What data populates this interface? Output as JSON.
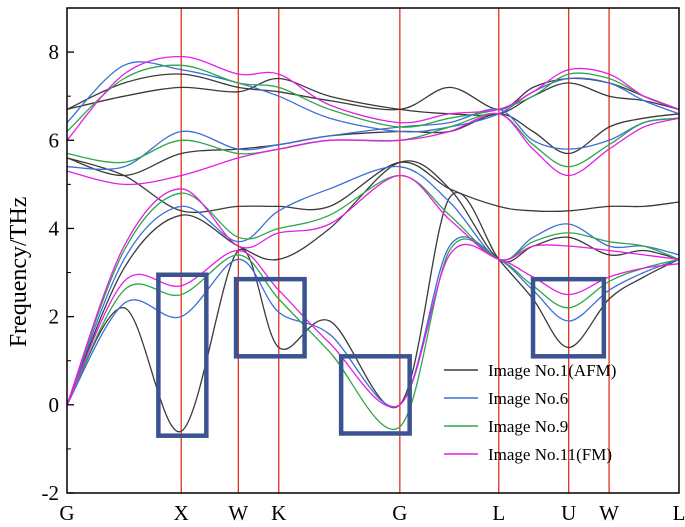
{
  "chart_data": {
    "type": "line",
    "title": "",
    "xlabel": "",
    "ylabel": "Frequency/THz",
    "ylim": [
      -2,
      9
    ],
    "yticks": [
      -2,
      0,
      2,
      4,
      6,
      8
    ],
    "grid": false,
    "legend_position": "bottom-right",
    "colors": {
      "afm": "#3a3a3a",
      "no6": "#3d6fd6",
      "no9": "#2ca84a",
      "fm": "#e61ee6",
      "high_symmetry_line": "#e0331e",
      "highlight_box": "#3b5391"
    },
    "path_axis": {
      "labels": [
        "G",
        "X",
        "W",
        "K",
        "G",
        "L",
        "U",
        "W",
        "L"
      ],
      "positions": [
        0,
        1,
        1.5,
        1.854,
        2.914,
        3.78,
        4.392,
        4.746,
        5.358
      ]
    },
    "series": [
      {
        "name": "Image No.1(AFM)",
        "color_key": "afm",
        "bands": [
          {
            "x": [
              0,
              0.5,
              1,
              1.5,
              1.854,
              2.3,
              2.914,
              3.35,
              3.78,
              4.08,
              4.392,
              4.746,
              5.05,
              5.358
            ],
            "y": [
              0,
              2.2,
              -0.6,
              3.5,
              1.3,
              1.9,
              0,
              4.7,
              3.3,
              2.4,
              1.3,
              2.4,
              2.9,
              3.3
            ]
          },
          {
            "x": [
              0,
              0.5,
              1,
              1.5,
              1.854,
              2.3,
              2.914,
              3.35,
              3.78,
              4.08,
              4.392,
              4.746,
              5.05,
              5.358
            ],
            "y": [
              0,
              3.1,
              4.3,
              3.6,
              3.3,
              4.0,
              5.5,
              4.9,
              3.3,
              3.6,
              3.8,
              3.4,
              3.5,
              3.3
            ]
          },
          {
            "x": [
              0,
              0.5,
              1,
              1.5,
              1.854,
              2.3,
              2.914,
              3.35,
              3.78,
              4.08,
              4.392,
              4.746,
              5.05,
              5.358
            ],
            "y": [
              5.6,
              5.2,
              4.4,
              4.5,
              4.5,
              4.5,
              5.5,
              4.9,
              4.5,
              4.4,
              4.4,
              4.5,
              4.5,
              4.6
            ]
          },
          {
            "x": [
              0,
              0.5,
              1,
              1.5,
              1.854,
              2.3,
              2.914,
              3.35,
              3.78,
              4.08,
              4.392,
              4.746,
              5.05,
              5.358
            ],
            "y": [
              5.6,
              5.2,
              5.7,
              5.8,
              5.9,
              6.1,
              6.2,
              6.2,
              6.6,
              6.2,
              5.7,
              6.3,
              6.5,
              6.6
            ]
          },
          {
            "x": [
              0,
              0.5,
              1,
              1.5,
              1.854,
              2.3,
              2.914,
              3.35,
              3.78,
              4.08,
              4.392,
              4.746,
              5.05,
              5.358
            ],
            "y": [
              6.7,
              7.0,
              7.2,
              7.1,
              7.4,
              7.0,
              6.7,
              6.6,
              6.6,
              7.0,
              7.3,
              7.0,
              6.9,
              6.7
            ]
          },
          {
            "x": [
              0,
              0.5,
              1,
              1.5,
              1.854,
              2.3,
              2.914,
              3.35,
              3.78,
              4.08,
              4.392,
              4.746,
              5.05,
              5.358
            ],
            "y": [
              6.7,
              7.3,
              7.5,
              7.2,
              7.1,
              6.9,
              6.7,
              7.2,
              6.7,
              7.2,
              7.4,
              7.3,
              7.0,
              6.7
            ]
          }
        ]
      },
      {
        "name": "Image No.6",
        "color_key": "no6",
        "bands": [
          {
            "x": [
              0,
              0.5,
              1,
              1.5,
              1.854,
              2.3,
              2.914,
              3.35,
              3.78,
              4.08,
              4.392,
              4.746,
              5.05,
              5.358
            ],
            "y": [
              0,
              2.3,
              2.0,
              3.3,
              2.1,
              1.6,
              0,
              3.6,
              3.3,
              2.6,
              1.9,
              2.6,
              3.0,
              3.3
            ]
          },
          {
            "x": [
              0,
              0.5,
              1,
              1.5,
              1.854,
              2.3,
              2.914,
              3.35,
              3.78,
              4.08,
              4.392,
              4.746,
              5.05,
              5.358
            ],
            "y": [
              0,
              3.3,
              4.5,
              3.7,
              4.4,
              4.9,
              5.4,
              4.6,
              3.3,
              3.8,
              4.1,
              3.6,
              3.6,
              3.4
            ]
          },
          {
            "x": [
              0,
              0.5,
              1,
              1.5,
              1.854,
              2.3,
              2.914,
              3.35,
              3.78,
              4.08,
              4.392,
              4.746,
              5.05,
              5.358
            ],
            "y": [
              5.4,
              5.4,
              6.2,
              5.8,
              5.9,
              6.1,
              6.3,
              6.4,
              6.7,
              6.0,
              5.8,
              6.0,
              6.4,
              6.5
            ]
          },
          {
            "x": [
              0,
              0.5,
              1,
              1.5,
              1.854,
              2.3,
              2.914,
              3.35,
              3.78,
              4.08,
              4.392,
              4.746,
              5.05,
              5.358
            ],
            "y": [
              6.4,
              7.7,
              7.6,
              7.3,
              7.0,
              6.5,
              6.2,
              6.3,
              6.6,
              7.1,
              7.4,
              7.3,
              6.9,
              6.6
            ]
          }
        ]
      },
      {
        "name": "Image No.9",
        "color_key": "no9",
        "bands": [
          {
            "x": [
              0,
              0.5,
              1,
              1.5,
              1.854,
              2.3,
              2.914,
              3.35,
              3.78,
              4.08,
              4.392,
              4.746,
              5.05,
              5.358
            ],
            "y": [
              0,
              2.6,
              2.5,
              3.4,
              2.4,
              1.2,
              -0.5,
              3.5,
              3.3,
              2.7,
              2.2,
              2.8,
              3.1,
              3.3
            ]
          },
          {
            "x": [
              0,
              0.5,
              1,
              1.5,
              1.854,
              2.3,
              2.914,
              3.35,
              3.78,
              4.08,
              4.392,
              4.746,
              5.05,
              5.358
            ],
            "y": [
              0,
              3.5,
              4.8,
              3.8,
              4.0,
              4.3,
              5.2,
              4.3,
              3.3,
              3.7,
              3.9,
              3.7,
              3.6,
              3.3
            ]
          },
          {
            "x": [
              0,
              0.5,
              1,
              1.5,
              1.854,
              2.3,
              2.914,
              3.35,
              3.78,
              4.08,
              4.392,
              4.746,
              5.05,
              5.358
            ],
            "y": [
              5.7,
              5.5,
              6.0,
              5.7,
              5.8,
              6.0,
              6.0,
              6.3,
              6.6,
              5.9,
              5.4,
              5.9,
              6.4,
              6.5
            ]
          },
          {
            "x": [
              0,
              0.5,
              1,
              1.5,
              1.854,
              2.3,
              2.914,
              3.35,
              3.78,
              4.08,
              4.392,
              4.746,
              5.05,
              5.358
            ],
            "y": [
              6.2,
              7.4,
              7.7,
              7.3,
              7.2,
              6.7,
              6.3,
              6.5,
              6.7,
              7.0,
              7.5,
              7.4,
              7.0,
              6.7
            ]
          }
        ]
      },
      {
        "name": "Image No.11(FM)",
        "color_key": "fm",
        "bands": [
          {
            "x": [
              0,
              0.5,
              1,
              1.5,
              1.854,
              2.3,
              2.914,
              3.35,
              3.78,
              4.08,
              4.392,
              4.746,
              5.05,
              5.358
            ],
            "y": [
              0,
              2.8,
              2.7,
              3.5,
              2.6,
              1.4,
              0,
              3.4,
              3.3,
              2.9,
              2.5,
              2.9,
              3.1,
              3.2
            ]
          },
          {
            "x": [
              0,
              0.5,
              1,
              1.5,
              1.854,
              2.3,
              2.914,
              3.35,
              3.78,
              4.08,
              4.392,
              4.746,
              5.05,
              5.358
            ],
            "y": [
              0,
              3.6,
              4.9,
              3.6,
              3.9,
              4.1,
              5.2,
              4.2,
              3.3,
              3.6,
              3.6,
              3.5,
              3.4,
              3.3
            ]
          },
          {
            "x": [
              0,
              0.5,
              1,
              1.5,
              1.854,
              2.3,
              2.914,
              3.35,
              3.78,
              4.08,
              4.392,
              4.746,
              5.05,
              5.358
            ],
            "y": [
              5.3,
              5.0,
              5.2,
              5.6,
              5.8,
              6.0,
              6.0,
              6.2,
              6.6,
              5.8,
              5.2,
              5.8,
              6.3,
              6.5
            ]
          },
          {
            "x": [
              0,
              0.5,
              1,
              1.5,
              1.854,
              2.3,
              2.914,
              3.35,
              3.78,
              4.08,
              4.392,
              4.746,
              5.05,
              5.358
            ],
            "y": [
              6.0,
              7.5,
              7.9,
              7.5,
              7.5,
              6.8,
              6.4,
              6.6,
              6.7,
              7.1,
              7.6,
              7.5,
              7.0,
              6.7
            ]
          }
        ]
      }
    ],
    "annotations": [
      {
        "label": "box-x",
        "x_range": [
          0.8,
          1.22
        ],
        "y_range": [
          -0.7,
          2.95
        ]
      },
      {
        "label": "box-k",
        "x_range": [
          1.48,
          2.08
        ],
        "y_range": [
          1.1,
          2.85
        ]
      },
      {
        "label": "box-g",
        "x_range": [
          2.4,
          3.0
        ],
        "y_range": [
          -0.65,
          1.1
        ]
      },
      {
        "label": "box-u",
        "x_range": [
          4.08,
          4.7
        ],
        "y_range": [
          1.1,
          2.85
        ]
      }
    ]
  }
}
